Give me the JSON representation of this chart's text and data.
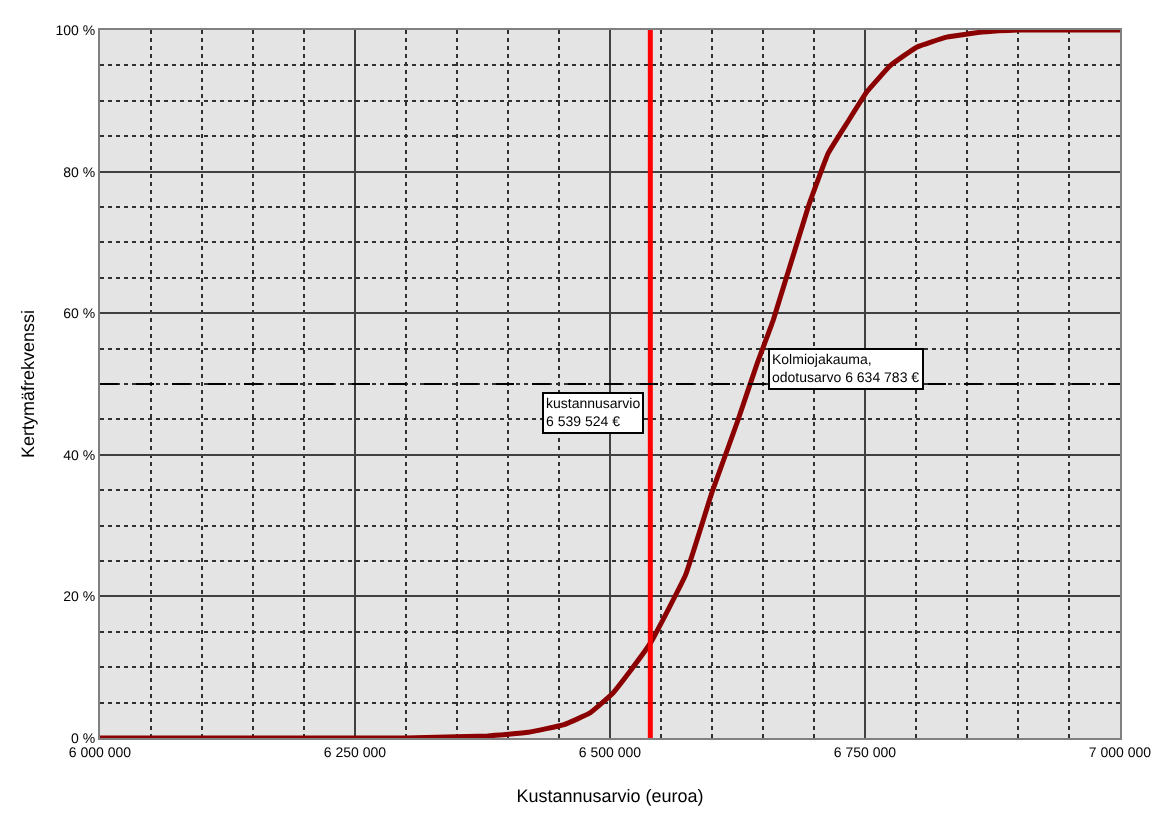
{
  "chart_data": {
    "type": "line",
    "xlabel": "Kustannusarvio (euroa)",
    "ylabel": "Kertymäfrekvenssi",
    "x": [
      6000000,
      6300000,
      6380000,
      6420000,
      6455000,
      6480000,
      6502000,
      6520000,
      6540000,
      6574000,
      6600000,
      6625000,
      6644000,
      6660000,
      6695000,
      6714000,
      6733000,
      6752000,
      6775000,
      6801000,
      6830000,
      6865000,
      6900000,
      7000000
    ],
    "series": [
      {
        "color": "#8b0000",
        "values": [
          0,
          0,
          0.3,
          0.8,
          1.9,
          3.5,
          6.2,
          9.5,
          13.5,
          23,
          34.7,
          44.7,
          52.8,
          59,
          75.3,
          82.6,
          87,
          91.3,
          95,
          97.6,
          99,
          99.7,
          100,
          100
        ]
      }
    ],
    "xlim": [
      6000000,
      7000000
    ],
    "xticks": [
      {
        "value": 6000000,
        "label": "6 000 000"
      },
      {
        "value": 6250000,
        "label": "6 250 000"
      },
      {
        "value": 6500000,
        "label": "6 500 000"
      },
      {
        "value": 6750000,
        "label": "6 750 000"
      },
      {
        "value": 7000000,
        "label": "7 000 000"
      }
    ],
    "ylim": [
      0,
      100
    ],
    "yticks": [
      {
        "value": 0,
        "label": "0 %"
      },
      {
        "value": 20,
        "label": "20 %"
      },
      {
        "value": 40,
        "label": "40 %"
      },
      {
        "value": 60,
        "label": "60 %"
      },
      {
        "value": 80,
        "label": "80 %"
      },
      {
        "value": 100,
        "label": "100 %"
      }
    ],
    "grid": true,
    "legend": false,
    "marker": "none",
    "line_style": "solid",
    "ref_lines": [
      {
        "axis": "x",
        "value": 6539524,
        "label": "kustannusarvio\n6 539 524 €",
        "color": "#ff0000",
        "line_style": "solid"
      },
      {
        "axis": "y",
        "value": 50,
        "label": null,
        "color": "#000000",
        "line_style": "dashed"
      }
    ],
    "annotations": [
      "Kolmiojakauma,\nodotusarvo 6 634 783 €"
    ]
  }
}
